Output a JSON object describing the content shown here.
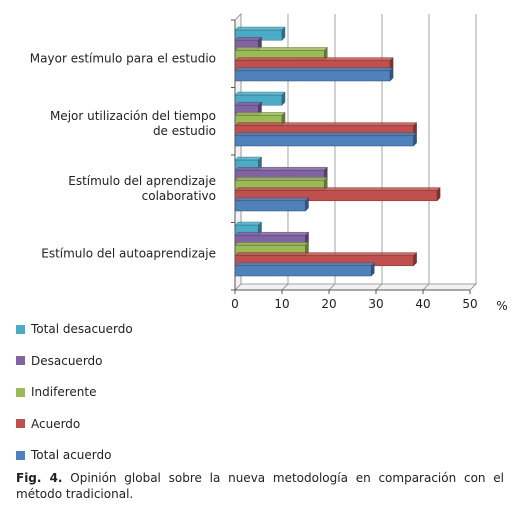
{
  "chart_data": {
    "type": "bar",
    "orientation": "horizontal",
    "style": "3d",
    "categories": [
      [
        "Mayor estímulo para el estudio"
      ],
      [
        "Mejor utilización del tiempo",
        "de estudio"
      ],
      [
        "Estímulo del aprendizaje",
        "colaborativo"
      ],
      [
        "Estímulo del autoaprendizaje"
      ]
    ],
    "series": [
      {
        "name": "Total desacuerdo",
        "color": "#4bacc6",
        "values": [
          10,
          10,
          5,
          5
        ]
      },
      {
        "name": "Desacuerdo",
        "color": "#8064a2",
        "values": [
          5,
          5,
          19,
          15
        ]
      },
      {
        "name": "Indiferente",
        "color": "#9bbb59",
        "values": [
          19,
          10,
          19,
          15
        ]
      },
      {
        "name": "Acuerdo",
        "color": "#c0504d",
        "values": [
          33,
          38,
          43,
          38
        ]
      },
      {
        "name": "Total acuerdo",
        "color": "#4f81bd",
        "values": [
          33,
          38,
          15,
          29
        ]
      }
    ],
    "xticks": [
      "0",
      "10",
      "20",
      "30",
      "40",
      "50"
    ],
    "xlabel": "%",
    "xlim": [
      0,
      50
    ],
    "grid": true,
    "legend_position": "bottom"
  },
  "caption": {
    "label": "Fig. 4.",
    "text": "Opinión global sobre la nueva metodología en comparación con el método tradicional."
  }
}
